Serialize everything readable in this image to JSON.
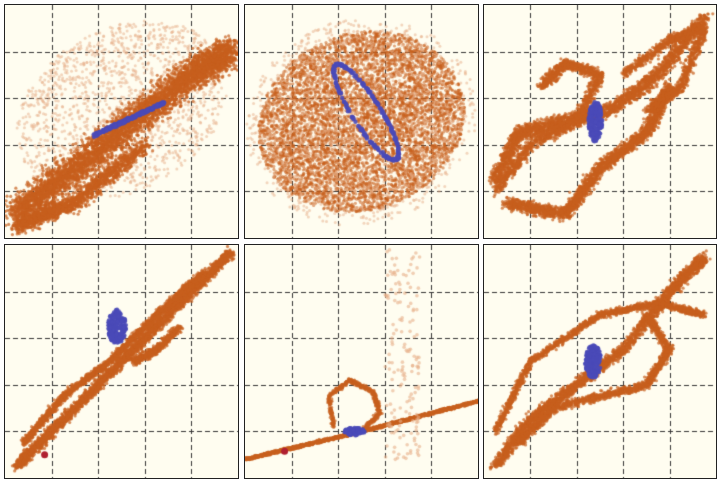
{
  "figure": {
    "panel_count": 6,
    "grid": "dashed",
    "colors": {
      "background": "#fffdf0",
      "grid": "#333333",
      "cloud": "#c8601e",
      "cloud_light": "#e8b08a",
      "structure": "#4a4ab8",
      "marker": "#b02030"
    }
  }
}
